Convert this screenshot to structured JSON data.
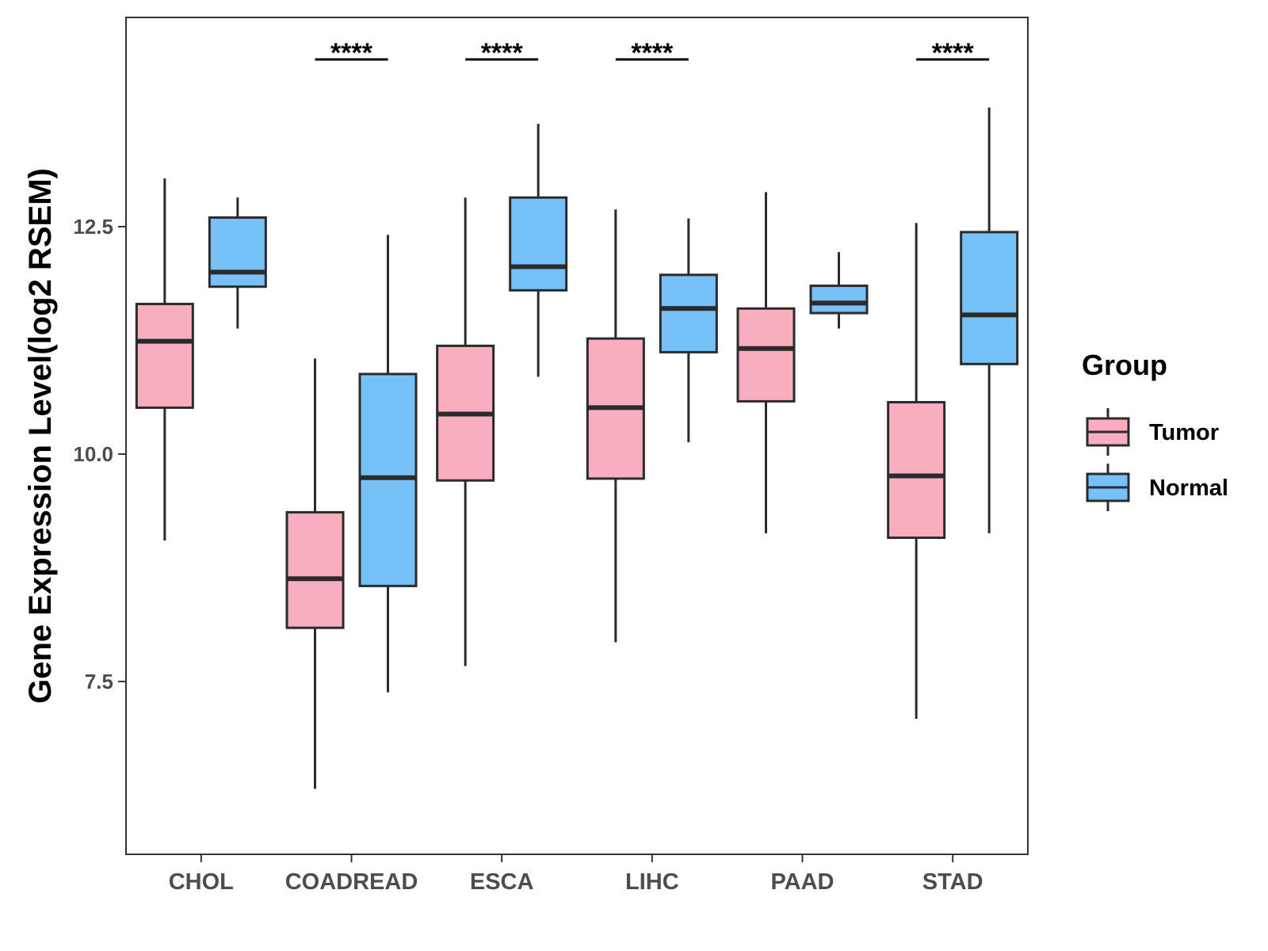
{
  "chart_data": {
    "type": "box",
    "title": "",
    "xlabel": "",
    "ylabel": "Gene Expression Level(log2 RSEM)",
    "ylim": [
      5.6,
      14.8
    ],
    "yticks": [
      7.5,
      10.0,
      12.5
    ],
    "ytick_labels": [
      "7.5",
      "10.0",
      "12.5"
    ],
    "categories": [
      "CHOL",
      "COADREAD",
      "ESCA",
      "LIHC",
      "PAAD",
      "STAD"
    ],
    "legend": {
      "title": "Group",
      "position": "right",
      "items": [
        {
          "label": "Tumor",
          "color": "#F9AEC0"
        },
        {
          "label": "Normal",
          "color": "#75C1F8"
        }
      ]
    },
    "series": [
      {
        "name": "Tumor",
        "color": "#F9AEC0",
        "boxes": [
          {
            "category": "CHOL",
            "min": 9.05,
            "q1": 10.51,
            "median": 11.24,
            "q3": 11.65,
            "max": 13.03
          },
          {
            "category": "COADREAD",
            "min": 6.32,
            "q1": 8.09,
            "median": 8.63,
            "q3": 9.36,
            "max": 11.05
          },
          {
            "category": "ESCA",
            "min": 7.67,
            "q1": 9.71,
            "median": 10.44,
            "q3": 11.19,
            "max": 12.82
          },
          {
            "category": "LIHC",
            "min": 7.93,
            "q1": 9.73,
            "median": 10.51,
            "q3": 11.27,
            "max": 12.69
          },
          {
            "category": "PAAD",
            "min": 9.13,
            "q1": 10.58,
            "median": 11.16,
            "q3": 11.6,
            "max": 12.88
          },
          {
            "category": "STAD",
            "min": 7.09,
            "q1": 9.08,
            "median": 9.76,
            "q3": 10.57,
            "max": 12.54
          }
        ]
      },
      {
        "name": "Normal",
        "color": "#75C1F8",
        "boxes": [
          {
            "category": "CHOL",
            "min": 11.38,
            "q1": 11.84,
            "median": 12.0,
            "q3": 12.6,
            "max": 12.82
          },
          {
            "category": "COADREAD",
            "min": 7.38,
            "q1": 8.55,
            "median": 9.74,
            "q3": 10.88,
            "max": 12.41
          },
          {
            "category": "ESCA",
            "min": 10.85,
            "q1": 11.8,
            "median": 12.06,
            "q3": 12.82,
            "max": 13.63
          },
          {
            "category": "LIHC",
            "min": 10.13,
            "q1": 11.12,
            "median": 11.6,
            "q3": 11.97,
            "max": 12.59
          },
          {
            "category": "PAAD",
            "min": 11.38,
            "q1": 11.55,
            "median": 11.66,
            "q3": 11.85,
            "max": 12.22
          },
          {
            "category": "STAD",
            "min": 9.13,
            "q1": 10.99,
            "median": 11.53,
            "q3": 12.44,
            "max": 13.81
          }
        ]
      }
    ],
    "significance": [
      {
        "category": "COADREAD",
        "label": "****"
      },
      {
        "category": "ESCA",
        "label": "****"
      },
      {
        "category": "LIHC",
        "label": "****"
      },
      {
        "category": "STAD",
        "label": "****"
      }
    ],
    "grid": false
  }
}
